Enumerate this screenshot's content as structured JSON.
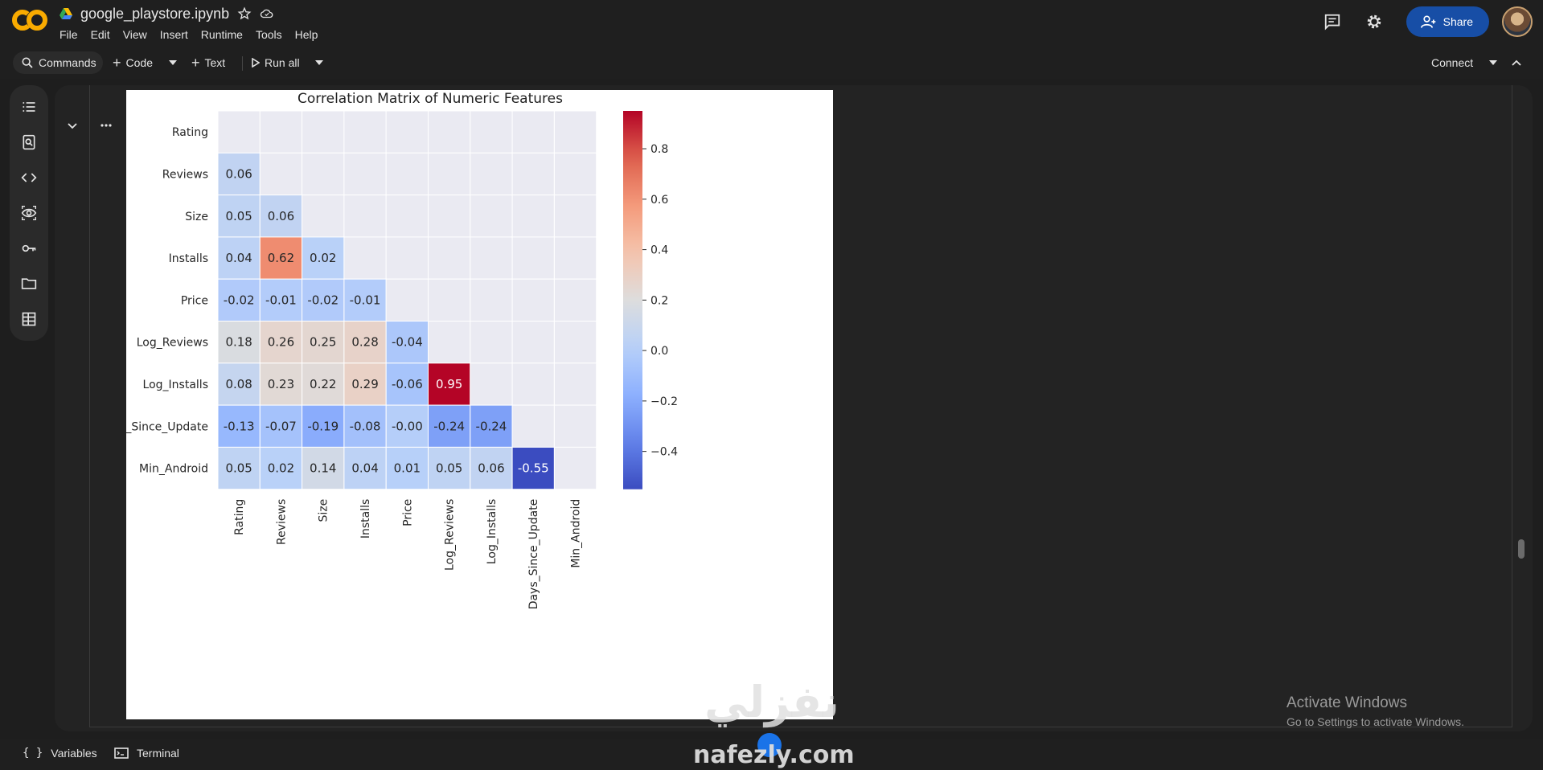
{
  "header": {
    "logo": "CO",
    "notebook_title": "google_playstore.ipynb",
    "menu": [
      "File",
      "Edit",
      "View",
      "Insert",
      "Runtime",
      "Tools",
      "Help"
    ],
    "share_label": "Share",
    "icons": [
      "comment-icon",
      "gear-icon",
      "share-person-icon",
      "avatar"
    ]
  },
  "toolbar": {
    "commands_label": "Commands",
    "code_label": "Code",
    "text_label": "Text",
    "run_all_label": "Run all",
    "connect_label": "Connect"
  },
  "sidebar": {
    "icons": [
      "table-of-contents-icon",
      "find-icon",
      "code-snippets-icon",
      "variables-inspector-icon",
      "secrets-key-icon",
      "files-folder-icon",
      "data-table-icon"
    ]
  },
  "footer": {
    "variables_label": "Variables",
    "terminal_label": "Terminal"
  },
  "os_watermark": {
    "line1": "Activate Windows",
    "line2": "Go to Settings to activate Windows."
  },
  "site_watermark": {
    "arabic": "نفزلي",
    "latin": "nafezly.com"
  },
  "chart_data": {
    "type": "heatmap",
    "title": "Correlation Matrix of Numeric Features",
    "rows": [
      "Rating",
      "Reviews",
      "Size",
      "Installs",
      "Price",
      "Log_Reviews",
      "Log_Installs",
      "Days_Since_Update",
      "Min_Android"
    ],
    "cols": [
      "Rating",
      "Reviews",
      "Size",
      "Installs",
      "Price",
      "Log_Reviews",
      "Log_Installs",
      "Days_Since_Update",
      "Min_Android"
    ],
    "mask": "upper-triangle-including-diagonal",
    "values": [
      [
        null,
        null,
        null,
        null,
        null,
        null,
        null,
        null,
        null
      ],
      [
        0.06,
        null,
        null,
        null,
        null,
        null,
        null,
        null,
        null
      ],
      [
        0.05,
        0.06,
        null,
        null,
        null,
        null,
        null,
        null,
        null
      ],
      [
        0.04,
        0.62,
        0.02,
        null,
        null,
        null,
        null,
        null,
        null
      ],
      [
        -0.02,
        -0.01,
        -0.02,
        -0.01,
        null,
        null,
        null,
        null,
        null
      ],
      [
        0.18,
        0.26,
        0.25,
        0.28,
        -0.04,
        null,
        null,
        null,
        null
      ],
      [
        0.08,
        0.23,
        0.22,
        0.29,
        -0.06,
        0.95,
        null,
        null,
        null
      ],
      [
        -0.13,
        -0.07,
        -0.19,
        -0.08,
        -0.0,
        -0.24,
        -0.24,
        null,
        null
      ],
      [
        0.05,
        0.02,
        0.14,
        0.04,
        0.01,
        0.05,
        0.06,
        -0.55,
        null
      ]
    ],
    "value_labels": [
      [],
      [
        "0.06"
      ],
      [
        "0.05",
        "0.06"
      ],
      [
        "0.04",
        "0.62",
        "0.02"
      ],
      [
        "-0.02",
        "-0.01",
        "-0.02",
        "-0.01"
      ],
      [
        "0.18",
        "0.26",
        "0.25",
        "0.28",
        "-0.04"
      ],
      [
        "0.08",
        "0.23",
        "0.22",
        "0.29",
        "-0.06",
        "0.95"
      ],
      [
        "-0.13",
        "-0.07",
        "-0.19",
        "-0.08",
        "-0.00",
        "-0.24",
        "-0.24"
      ],
      [
        "0.05",
        "0.02",
        "0.14",
        "0.04",
        "0.01",
        "0.05",
        "0.06",
        "-0.55"
      ]
    ],
    "colormap": "coolwarm",
    "vmin": -0.55,
    "vmax": 0.95,
    "colorbar_ticks": [
      0.8,
      0.6,
      0.4,
      0.2,
      0.0,
      -0.2,
      -0.4
    ],
    "colorbar_tick_labels": [
      "0.8",
      "0.6",
      "0.4",
      "0.2",
      "0.0",
      "−0.2",
      "−0.4"
    ],
    "masked_color": "#eaeaf2",
    "grid": true
  }
}
